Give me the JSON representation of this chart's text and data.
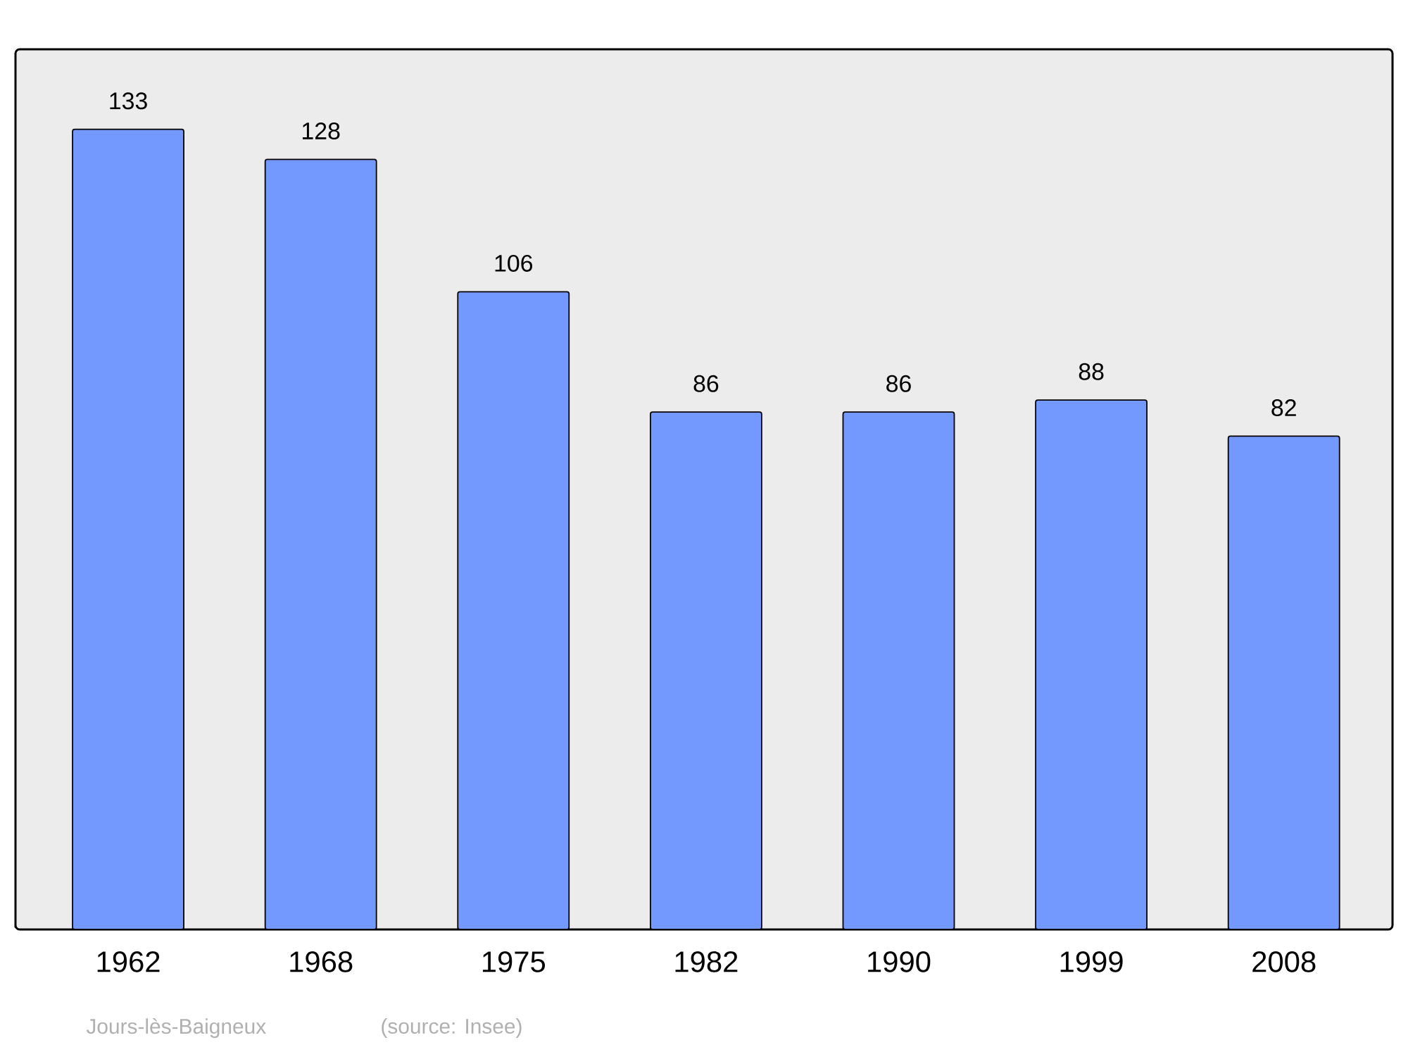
{
  "chart_data": {
    "type": "bar",
    "categories": [
      "1962",
      "1968",
      "1975",
      "1982",
      "1990",
      "1999",
      "2008"
    ],
    "values": [
      133,
      128,
      106,
      86,
      86,
      88,
      82
    ],
    "color": "#7399ff",
    "data_labels": true,
    "annotations": [
      "Jours-lès-Baigneux",
      "(source: Insee)"
    ]
  }
}
